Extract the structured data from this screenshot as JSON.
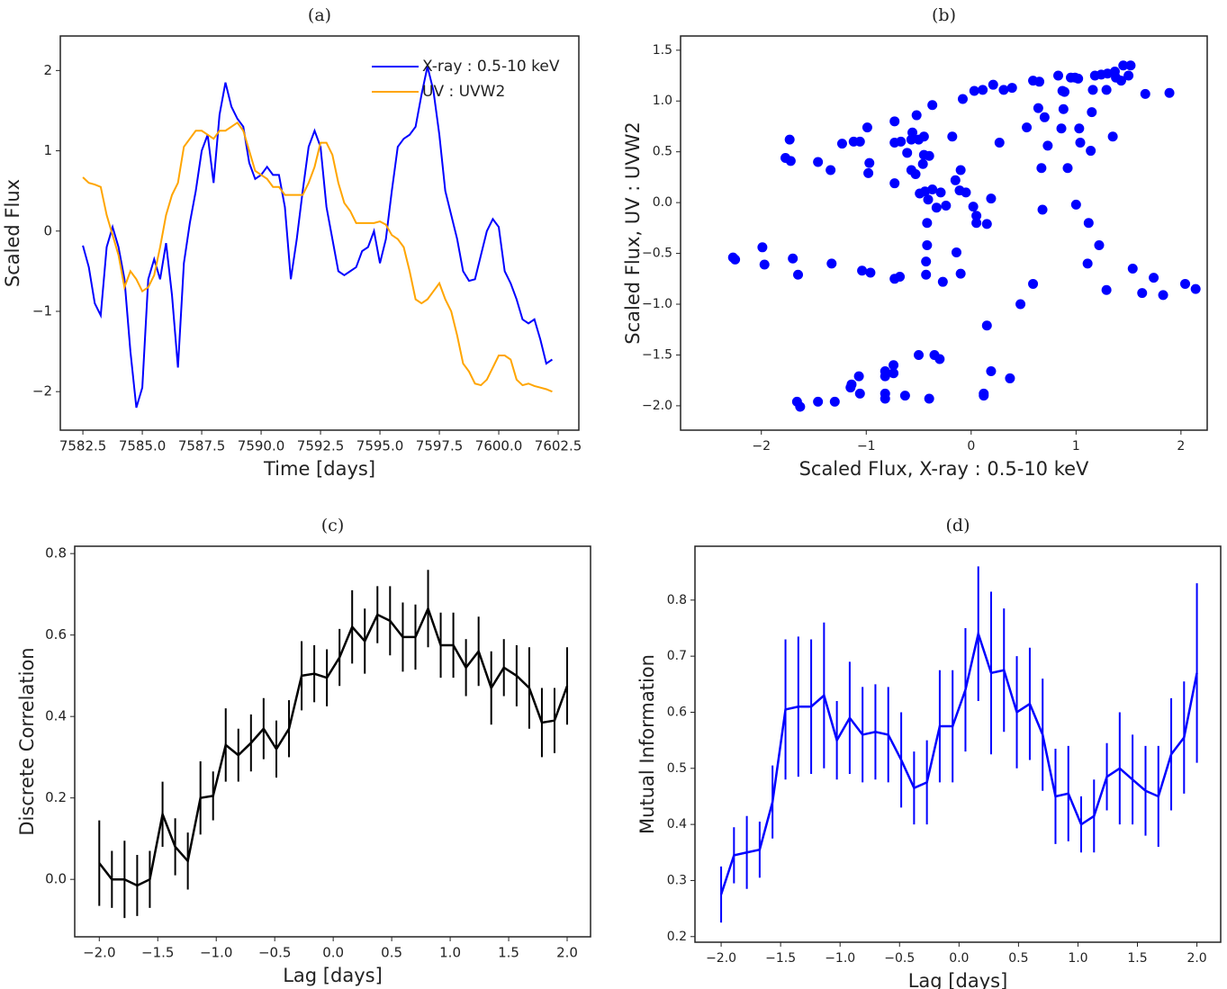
{
  "chart_data": [
    {
      "type": "line",
      "title": "(a)",
      "xlabel": "Time [days]",
      "ylabel": "Scaled Flux",
      "x": [
        7582.5,
        7582.75,
        7583,
        7583.25,
        7583.5,
        7583.75,
        7584,
        7584.25,
        7584.5,
        7584.75,
        7585,
        7585.25,
        7585.5,
        7585.75,
        7586,
        7586.25,
        7586.5,
        7586.75,
        7587,
        7587.25,
        7587.5,
        7587.75,
        7588,
        7588.25,
        7588.5,
        7588.75,
        7589,
        7589.25,
        7589.5,
        7589.75,
        7590,
        7590.25,
        7590.5,
        7590.75,
        7591,
        7591.25,
        7591.5,
        7591.75,
        7592,
        7592.25,
        7592.5,
        7592.75,
        7593,
        7593.25,
        7593.5,
        7593.75,
        7594,
        7594.25,
        7594.5,
        7594.75,
        7595,
        7595.25,
        7595.5,
        7595.75,
        7596,
        7596.25,
        7596.5,
        7596.75,
        7597,
        7597.25,
        7597.5,
        7597.75,
        7598,
        7598.25,
        7598.5,
        7598.75,
        7599,
        7599.25,
        7599.5,
        7599.75,
        7600,
        7600.25,
        7600.5,
        7600.75,
        7601,
        7601.25,
        7601.5,
        7601.75,
        7602,
        7602.25
      ],
      "series": [
        {
          "name": "X-ray : 0.5-10 keV",
          "color": "#0000ff",
          "values": [
            -0.18,
            -0.45,
            -0.9,
            -1.05,
            -0.2,
            0.05,
            -0.2,
            -0.6,
            -1.5,
            -2.2,
            -1.95,
            -0.6,
            -0.35,
            -0.6,
            -0.15,
            -0.8,
            -1.7,
            -0.4,
            0.1,
            0.5,
            1.0,
            1.2,
            0.6,
            1.45,
            1.85,
            1.55,
            1.4,
            1.3,
            0.85,
            0.65,
            0.7,
            0.8,
            0.7,
            0.7,
            0.3,
            -0.6,
            -0.1,
            0.5,
            1.05,
            1.25,
            1.05,
            0.3,
            -0.1,
            -0.5,
            -0.55,
            -0.5,
            -0.45,
            -0.25,
            -0.2,
            0.0,
            -0.4,
            -0.1,
            0.5,
            1.05,
            1.15,
            1.2,
            1.3,
            1.7,
            2.05,
            1.75,
            1.2,
            0.5,
            0.2,
            -0.1,
            -0.5,
            -0.62,
            -0.6,
            -0.3,
            0.0,
            0.15,
            0.05,
            -0.5,
            -0.65,
            -0.85,
            -1.1,
            -1.15,
            -1.1,
            -1.35,
            -1.65,
            -1.6
          ]
        },
        {
          "name": "UV : UVW2",
          "color": "#ffa500",
          "values": [
            0.67,
            0.6,
            0.58,
            0.55,
            0.2,
            -0.05,
            -0.3,
            -0.7,
            -0.5,
            -0.6,
            -0.75,
            -0.7,
            -0.55,
            -0.2,
            0.2,
            0.45,
            0.6,
            1.05,
            1.15,
            1.25,
            1.25,
            1.2,
            1.15,
            1.25,
            1.25,
            1.3,
            1.35,
            1.25,
            1.0,
            0.75,
            0.7,
            0.65,
            0.55,
            0.55,
            0.45,
            0.45,
            0.45,
            0.45,
            0.6,
            0.8,
            1.1,
            1.1,
            0.95,
            0.6,
            0.35,
            0.25,
            0.1,
            0.1,
            0.1,
            0.1,
            0.12,
            0.08,
            -0.05,
            -0.1,
            -0.2,
            -0.5,
            -0.85,
            -0.9,
            -0.85,
            -0.75,
            -0.65,
            -0.85,
            -1.0,
            -1.3,
            -1.65,
            -1.75,
            -1.9,
            -1.92,
            -1.85,
            -1.7,
            -1.55,
            -1.55,
            -1.6,
            -1.85,
            -1.92,
            -1.9,
            -1.93,
            -1.95,
            -1.97,
            -2.0
          ]
        }
      ],
      "legend": "upper right",
      "xlim": [
        7581.55,
        7603.37
      ],
      "ylim": [
        -2.48,
        2.43
      ],
      "xticks": [
        7582.5,
        {
          "value": 7585,
          "label": "7585.0"
        },
        7587.5,
        {
          "value": 7590,
          "label": "7590.0"
        },
        7592.5,
        {
          "value": 7595,
          "label": "7595.0"
        },
        7597.5,
        {
          "value": 7600,
          "label": "7600.0"
        },
        7602.5
      ],
      "yticks": [
        {
          "value": -2,
          "label": "−2"
        },
        {
          "value": -1,
          "label": "−1"
        },
        0,
        1,
        2
      ]
    },
    {
      "type": "scatter",
      "title": "(b)",
      "xlabel": "Scaled Flux, X-ray : 0.5-10 keV",
      "ylabel": "Scaled Flux, UV : UVW2",
      "color": "#0000ff",
      "x": [
        -2.27,
        -2.25,
        -1.99,
        -1.97,
        -1.73,
        -1.77,
        -1.72,
        -1.7,
        -1.65,
        -1.46,
        -1.34,
        -1.33,
        -1.23,
        -1.12,
        -1.06,
        -0.99,
        -0.97,
        -0.98,
        -1.04,
        -0.96,
        -0.73,
        -0.73,
        -0.67,
        -0.61,
        -0.57,
        -0.56,
        -0.52,
        -0.5,
        -0.45,
        -0.45,
        -0.57,
        -0.53,
        -0.73,
        -0.46,
        -0.4,
        -0.37,
        -0.49,
        -0.44,
        -0.37,
        -0.41,
        -0.33,
        -0.29,
        -0.24,
        -0.18,
        -0.15,
        -0.1,
        -0.11,
        -0.05,
        -0.08,
        0.03,
        0.11,
        0.21,
        0.31,
        0.39,
        0.02,
        0.05,
        0.05,
        0.19,
        0.27,
        -0.42,
        -0.42,
        -0.43,
        -0.43,
        -0.27,
        -0.14,
        -0.1,
        0.15,
        0.15,
        0.47,
        -0.73,
        -0.68,
        -0.74,
        -0.82,
        -0.74,
        -1.07,
        -1.15,
        -1.14,
        -1.06,
        -0.82,
        -0.82,
        -0.82,
        -0.63,
        -0.5,
        -0.4,
        -0.35,
        -0.3,
        -1.66,
        -1.63,
        -1.46,
        -1.3,
        0.12,
        0.12,
        0.19,
        0.37,
        0.59,
        0.65,
        0.53,
        0.64,
        0.7,
        0.67,
        0.68,
        0.73,
        0.83,
        0.87,
        0.89,
        0.88,
        0.86,
        0.92,
        0.95,
        0.99,
        1.02,
        1.03,
        1.04,
        1.0,
        1.12,
        1.15,
        1.14,
        1.16,
        1.18,
        1.24,
        1.22,
        1.29,
        1.3,
        1.29,
        1.11,
        1.37,
        1.38,
        1.35,
        1.43,
        1.45,
        1.52,
        1.5,
        1.54,
        1.66,
        1.63,
        1.74,
        1.83,
        1.89,
        2.04,
        2.14,
        0.59
      ],
      "values": [
        -0.54,
        -0.56,
        -0.44,
        -0.61,
        0.62,
        0.44,
        0.41,
        -0.55,
        -0.71,
        0.4,
        0.32,
        -0.6,
        0.58,
        0.6,
        0.6,
        0.74,
        0.39,
        0.29,
        -0.67,
        -0.69,
        0.8,
        0.59,
        0.6,
        0.49,
        0.62,
        0.69,
        0.86,
        0.62,
        0.65,
        0.47,
        0.32,
        0.28,
        0.19,
        0.38,
        0.46,
        0.96,
        0.09,
        0.11,
        0.13,
        0.03,
        -0.05,
        0.1,
        -0.03,
        0.65,
        0.22,
        0.32,
        0.12,
        0.1,
        1.02,
        1.1,
        1.11,
        1.16,
        1.11,
        1.13,
        -0.04,
        -0.13,
        -0.2,
        0.04,
        0.59,
        -0.2,
        -0.42,
        -0.58,
        -0.71,
        -0.78,
        -0.49,
        -0.7,
        -0.21,
        -1.21,
        -1.0,
        -0.75,
        -0.73,
        -1.6,
        -1.66,
        -1.68,
        -1.71,
        -1.82,
        -1.79,
        -1.88,
        -1.88,
        -1.93,
        -1.71,
        -1.9,
        -1.5,
        -1.93,
        -1.5,
        -1.54,
        -1.96,
        -2.01,
        -1.96,
        -1.96,
        -1.88,
        -1.9,
        -1.66,
        -1.73,
        1.2,
        1.19,
        0.74,
        0.93,
        0.84,
        0.34,
        -0.07,
        0.56,
        1.25,
        1.1,
        1.09,
        0.92,
        0.73,
        0.34,
        1.23,
        1.23,
        1.22,
        0.73,
        0.59,
        -0.02,
        -0.2,
        0.89,
        0.51,
        1.11,
        1.25,
        1.26,
        -0.42,
        -0.86,
        1.27,
        1.11,
        -0.6,
        1.29,
        1.23,
        0.65,
        1.2,
        1.35,
        1.35,
        1.25,
        -0.65,
        1.07,
        -0.89,
        -0.74,
        -0.91,
        1.08,
        -0.8,
        -0.85,
        -0.8
      ],
      "xlim": [
        -2.77,
        2.25
      ],
      "ylim": [
        -2.24,
        1.64
      ],
      "xticks": [
        {
          "value": -2,
          "label": "−2"
        },
        {
          "value": -1,
          "label": "−1"
        },
        0,
        1,
        2
      ],
      "yticks": [
        {
          "value": -2,
          "label": "−2.0"
        },
        {
          "value": -1.5,
          "label": "−1.5"
        },
        {
          "value": -1,
          "label": "−1.0"
        },
        {
          "value": -0.5,
          "label": "−0.5"
        },
        {
          "value": 0,
          "label": "0.0"
        },
        0.5,
        {
          "value": 1,
          "label": "1.0"
        },
        1.5
      ]
    },
    {
      "type": "errorbar",
      "title": "(c)",
      "xlabel": "Lag [days]",
      "ylabel": "Discrete Correlation",
      "color": "#000000",
      "x": [
        -2.0,
        -1.892,
        -1.784,
        -1.676,
        -1.568,
        -1.459,
        -1.351,
        -1.243,
        -1.135,
        -1.027,
        -0.919,
        -0.811,
        -0.703,
        -0.595,
        -0.486,
        -0.378,
        -0.27,
        -0.162,
        -0.054,
        0.054,
        0.162,
        0.27,
        0.378,
        0.486,
        0.595,
        0.703,
        0.811,
        0.919,
        1.027,
        1.135,
        1.243,
        1.351,
        1.459,
        1.568,
        1.676,
        1.784,
        1.892,
        2.0
      ],
      "values": [
        0.04,
        0.0,
        0.0,
        -0.015,
        0.0,
        0.16,
        0.08,
        0.045,
        0.2,
        0.205,
        0.33,
        0.305,
        0.335,
        0.37,
        0.32,
        0.37,
        0.5,
        0.505,
        0.495,
        0.545,
        0.62,
        0.585,
        0.65,
        0.635,
        0.595,
        0.595,
        0.665,
        0.575,
        0.575,
        0.52,
        0.56,
        0.47,
        0.52,
        0.5,
        0.47,
        0.385,
        0.39,
        0.475
      ],
      "errors": [
        0.105,
        0.07,
        0.095,
        0.075,
        0.07,
        0.08,
        0.07,
        0.07,
        0.09,
        0.06,
        0.09,
        0.065,
        0.07,
        0.075,
        0.07,
        0.07,
        0.085,
        0.07,
        0.07,
        0.07,
        0.09,
        0.08,
        0.07,
        0.085,
        0.085,
        0.08,
        0.095,
        0.08,
        0.08,
        0.07,
        0.085,
        0.09,
        0.07,
        0.075,
        0.1,
        0.085,
        0.08,
        0.095
      ],
      "xlim": [
        -2.21,
        2.2
      ],
      "ylim": [
        -0.141,
        0.818
      ],
      "xticks": [
        {
          "value": -2,
          "label": "−2.0"
        },
        {
          "value": -1.5,
          "label": "−1.5"
        },
        {
          "value": -1,
          "label": "−1.0"
        },
        {
          "value": -0.5,
          "label": "−0.5"
        },
        {
          "value": 0,
          "label": "0.0"
        },
        0.5,
        {
          "value": 1,
          "label": "1.0"
        },
        1.5,
        {
          "value": 2,
          "label": "2.0"
        }
      ],
      "yticks": [
        {
          "value": 0,
          "label": "0.0"
        },
        0.2,
        0.4,
        0.6,
        0.8
      ]
    },
    {
      "type": "errorbar",
      "title": "(d)",
      "xlabel": "Lag [days]",
      "ylabel": "Mutual Information",
      "color": "#0000ff",
      "x": [
        -2.0,
        -1.892,
        -1.784,
        -1.676,
        -1.568,
        -1.459,
        -1.351,
        -1.243,
        -1.135,
        -1.027,
        -0.919,
        -0.811,
        -0.703,
        -0.595,
        -0.486,
        -0.378,
        -0.27,
        -0.162,
        -0.054,
        0.054,
        0.162,
        0.27,
        0.378,
        0.486,
        0.595,
        0.703,
        0.811,
        0.919,
        1.027,
        1.135,
        1.243,
        1.351,
        1.459,
        1.568,
        1.676,
        1.784,
        1.892,
        2.0
      ],
      "values": [
        0.275,
        0.345,
        0.35,
        0.355,
        0.44,
        0.605,
        0.61,
        0.61,
        0.63,
        0.55,
        0.59,
        0.56,
        0.565,
        0.56,
        0.515,
        0.465,
        0.475,
        0.575,
        0.575,
        0.64,
        0.74,
        0.67,
        0.675,
        0.6,
        0.615,
        0.56,
        0.45,
        0.455,
        0.4,
        0.415,
        0.485,
        0.5,
        0.48,
        0.46,
        0.45,
        0.525,
        0.555,
        0.67
      ],
      "errors": [
        0.05,
        0.05,
        0.065,
        0.05,
        0.065,
        0.125,
        0.125,
        0.12,
        0.13,
        0.07,
        0.1,
        0.085,
        0.085,
        0.085,
        0.085,
        0.065,
        0.075,
        0.1,
        0.1,
        0.11,
        0.12,
        0.145,
        0.11,
        0.1,
        0.1,
        0.1,
        0.085,
        0.085,
        0.05,
        0.065,
        0.06,
        0.1,
        0.08,
        0.08,
        0.09,
        0.1,
        0.1,
        0.16
      ],
      "xlim": [
        -2.22,
        2.2
      ],
      "ylim": [
        0.19,
        0.896
      ],
      "xticks": [
        {
          "value": -2,
          "label": "−2.0"
        },
        {
          "value": -1.5,
          "label": "−1.5"
        },
        {
          "value": -1,
          "label": "−1.0"
        },
        {
          "value": -0.5,
          "label": "−0.5"
        },
        {
          "value": 0,
          "label": "0.0"
        },
        0.5,
        {
          "value": 1,
          "label": "1.0"
        },
        1.5,
        {
          "value": 2,
          "label": "2.0"
        }
      ],
      "yticks": [
        0.2,
        0.3,
        0.4,
        0.5,
        0.6,
        0.7,
        0.8
      ]
    }
  ]
}
